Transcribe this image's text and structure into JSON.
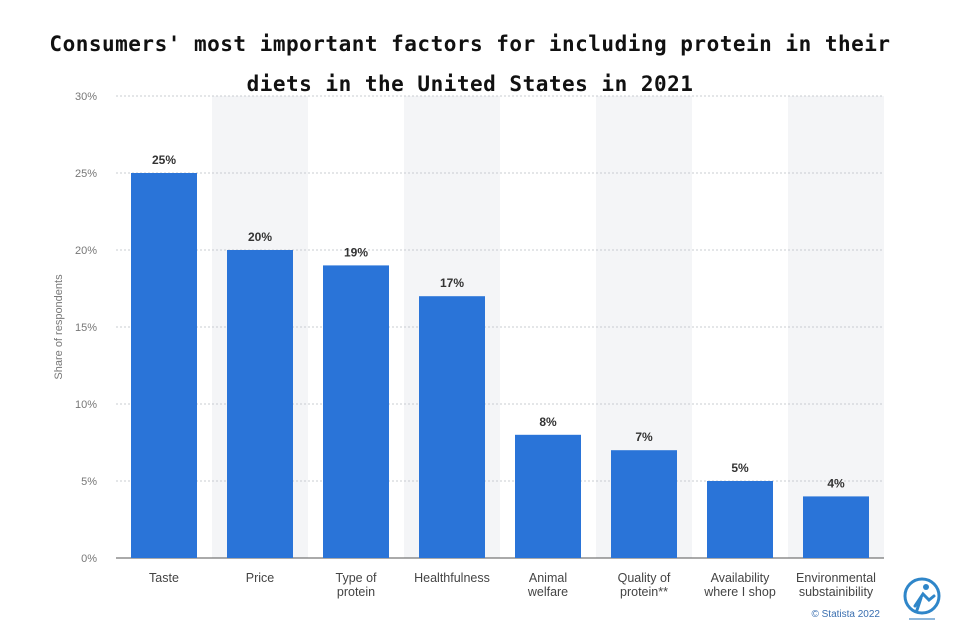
{
  "title_line1": "Consumers' most important factors for including protein in their",
  "title_line2": "diets in the United States in 2021",
  "credit": "© Statista 2022",
  "accent_color": "#2a74d8",
  "chart_data": {
    "type": "bar",
    "ylabel": "Share of respondents",
    "ylim": [
      0,
      30
    ],
    "yticks": [
      "0%",
      "5%",
      "10%",
      "15%",
      "20%",
      "25%",
      "30%"
    ],
    "grid": true,
    "categories": [
      [
        "Taste"
      ],
      [
        "Price"
      ],
      [
        "Type of",
        "protein"
      ],
      [
        "Healthfulness"
      ],
      [
        "Animal",
        "welfare"
      ],
      [
        "Quality of",
        "protein**"
      ],
      [
        "Availability",
        "where I shop"
      ],
      [
        "Environmental",
        "substainibility"
      ]
    ],
    "values": [
      25,
      20,
      19,
      17,
      8,
      7,
      5,
      4
    ],
    "data_labels": [
      "25%",
      "20%",
      "19%",
      "17%",
      "8%",
      "7%",
      "5%",
      "4%"
    ]
  }
}
